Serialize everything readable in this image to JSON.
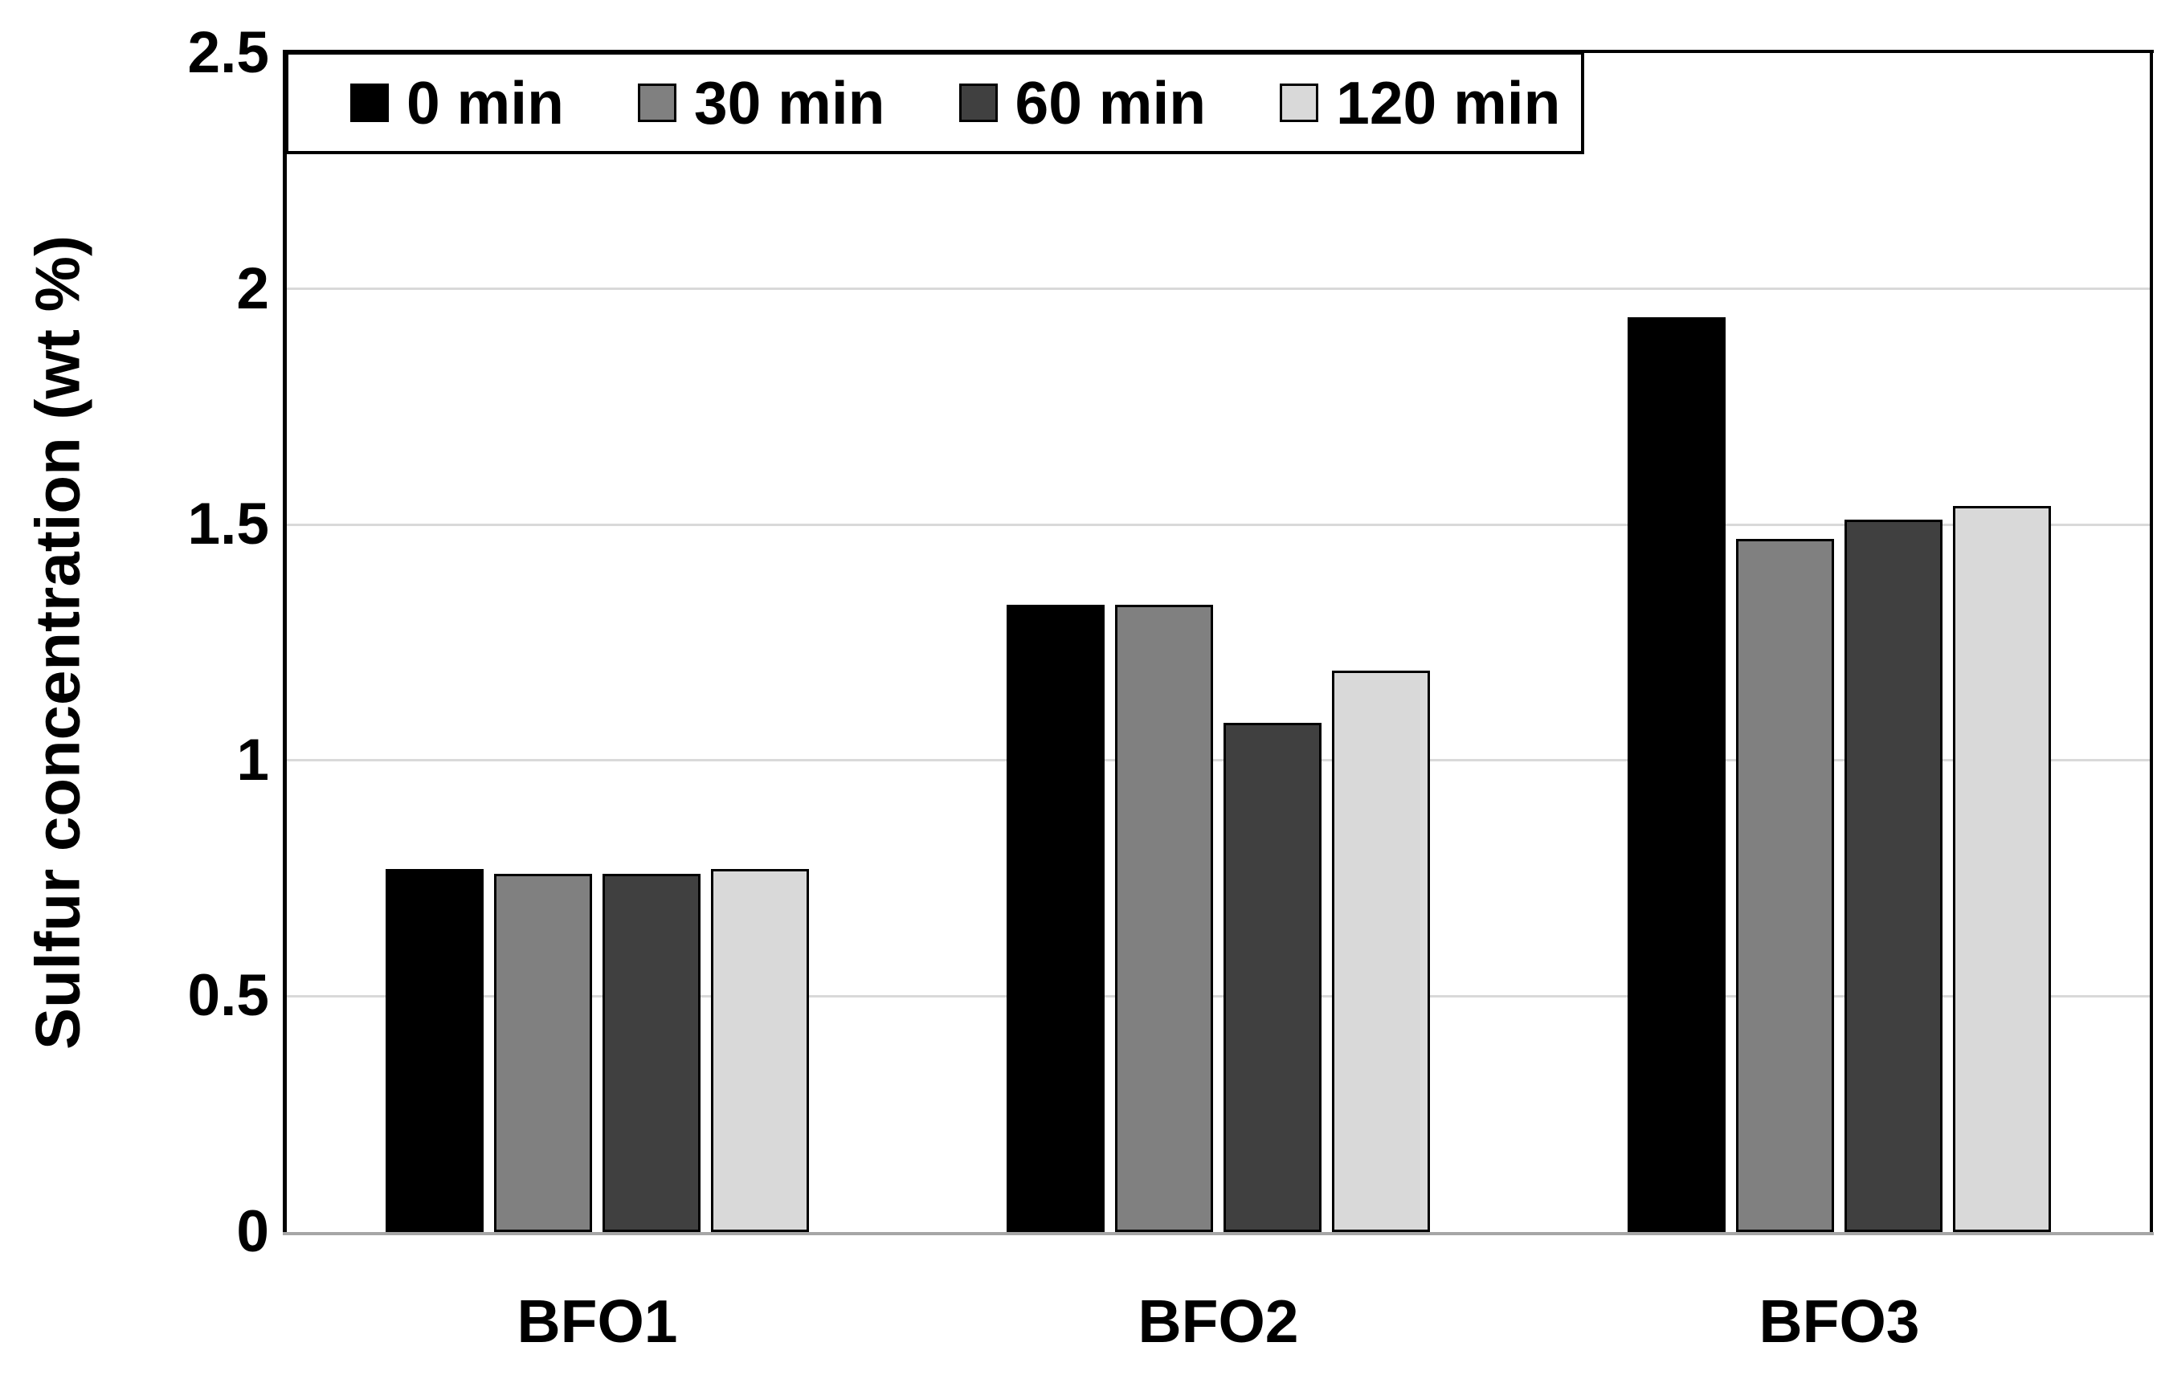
{
  "chart_data": {
    "type": "bar",
    "title": "",
    "categories": [
      "BFO1",
      "BFO2",
      "BFO3"
    ],
    "series": [
      {
        "name": "0 min",
        "color": "#000000",
        "values": [
          0.77,
          1.33,
          1.94
        ]
      },
      {
        "name": "30 min",
        "color": "#808080",
        "values": [
          0.76,
          1.33,
          1.47
        ]
      },
      {
        "name": "60 min",
        "color": "#404040",
        "values": [
          0.76,
          1.08,
          1.51
        ]
      },
      {
        "name": "120 min",
        "color": "#d9d9d9",
        "values": [
          0.77,
          1.19,
          1.54
        ]
      }
    ],
    "xlabel": "",
    "ylabel": "Sulfur concentration (wt %)",
    "ylim": [
      0,
      2.5
    ],
    "yticks": [
      0,
      0.5,
      1,
      1.5,
      2,
      2.5
    ],
    "ytick_labels": [
      "0",
      "0.5",
      "1",
      "1.5",
      "2",
      "2.5"
    ],
    "grid": true,
    "legend_position": "top-left"
  },
  "colors": {
    "background": "#ffffff",
    "gridline": "#d9d9d9",
    "axis": "#000000",
    "baseline": "#a6a6a6",
    "bar_border": "#000000",
    "text": "#000000"
  }
}
